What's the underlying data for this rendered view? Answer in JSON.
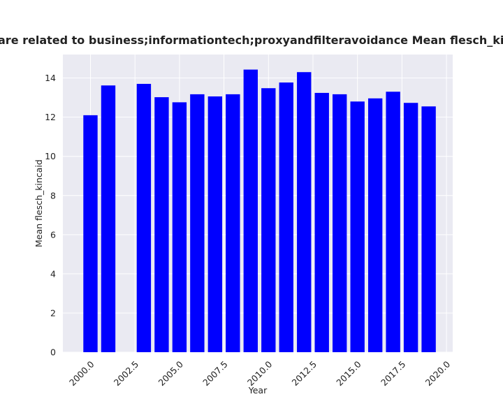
{
  "chart_data": {
    "type": "bar",
    "title": "are related to business;informationtech;proxyandfilteravoidance Mean flesch_kincaid in priva",
    "xlabel": "Year",
    "ylabel": "Mean flesch_kincaid",
    "x": [
      2000,
      2001,
      2003,
      2004,
      2005,
      2006,
      2007,
      2008,
      2009,
      2010,
      2011,
      2012,
      2013,
      2014,
      2015,
      2016,
      2017,
      2018,
      2019
    ],
    "values": [
      12.1,
      13.62,
      13.7,
      13.02,
      12.76,
      13.17,
      13.06,
      13.17,
      14.43,
      13.48,
      13.77,
      14.3,
      13.24,
      13.17,
      12.8,
      12.96,
      13.3,
      12.73,
      12.55
    ],
    "xlim": [
      1998.45,
      2020.35
    ],
    "ylim": [
      0,
      15.2
    ],
    "xticks": [
      2000.0,
      2002.5,
      2005.0,
      2007.5,
      2010.0,
      2012.5,
      2015.0,
      2017.5,
      2020.0
    ],
    "xtick_labels": [
      "2000.0",
      "2002.5",
      "2005.0",
      "2007.5",
      "2010.0",
      "2012.5",
      "2015.0",
      "2017.5",
      "2020.0"
    ],
    "yticks": [
      0,
      2,
      4,
      6,
      8,
      10,
      12,
      14
    ],
    "ytick_labels": [
      "0",
      "2",
      "4",
      "6",
      "8",
      "10",
      "12",
      "14"
    ],
    "bar_color": "#0000ff",
    "background_color": "#eaeaf2",
    "grid": true,
    "grid_color": "#ffffff"
  }
}
